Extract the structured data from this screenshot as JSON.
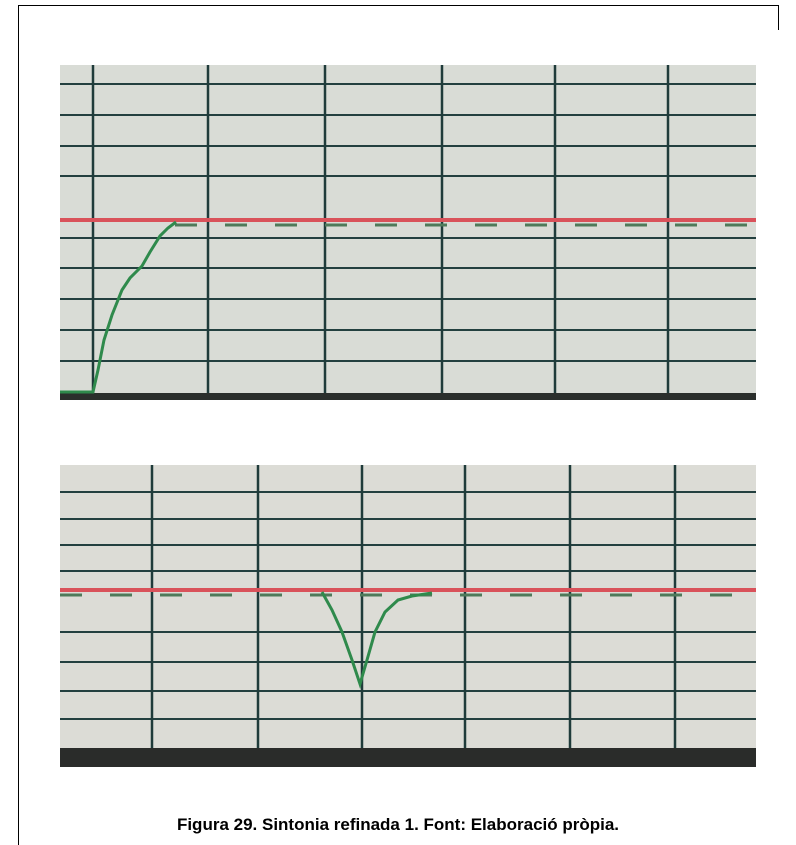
{
  "caption": "Figura 29. Sintonia refinada 1. Font: Elaboració pròpia."
}
